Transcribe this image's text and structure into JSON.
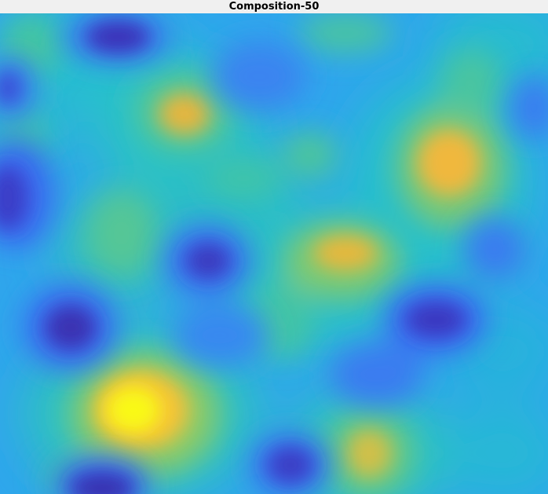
{
  "window": {
    "title": "Composition-50"
  },
  "image": {
    "colormap": "parula",
    "colors": {
      "dark_blue": "#3b2fb8",
      "blue": "#3b78f0",
      "light_blue": "#35a0f0",
      "cyan": "#22c4cc",
      "green": "#45c890",
      "yellow_green": "#b6c94c",
      "orange": "#f5b93c",
      "yellow": "#f9f919"
    }
  }
}
